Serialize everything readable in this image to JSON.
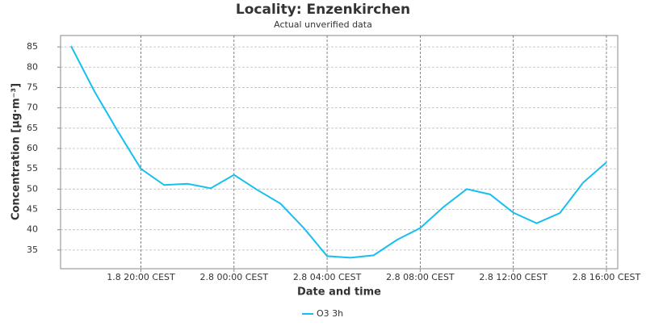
{
  "chart_data": {
    "type": "line",
    "title": "Locality: Enzenkirchen",
    "subtitle": "Actual unverified data",
    "x_label": "Date and time",
    "y_label": "Concentration [µg·m⁻³]",
    "categories": [
      null,
      null,
      null,
      "1.8 20:00 CEST",
      null,
      null,
      null,
      "2.8 00:00 CEST",
      null,
      null,
      null,
      "2.8 04:00 CEST",
      null,
      null,
      null,
      "2.8 08:00 CEST",
      null,
      null,
      null,
      "2.8 12:00 CEST",
      null,
      null,
      null,
      "2.8 16:00 CEST"
    ],
    "series": [
      {
        "name": "O3 3h",
        "color": "#17bff0",
        "values": [
          85.2,
          74.1,
          64.3,
          55.0,
          51.0,
          51.3,
          50.2,
          53.5,
          49.8,
          46.4,
          40.4,
          33.5,
          33.1,
          33.7,
          37.5,
          40.4,
          45.6,
          50.0,
          48.7,
          44.2,
          41.6,
          44.1,
          51.6,
          56.6
        ]
      }
    ],
    "ylim": [
      30.4,
      87.8
    ],
    "yticks": [
      35,
      40,
      45,
      50,
      55,
      60,
      65,
      70,
      75,
      80,
      85
    ],
    "grid": true,
    "legend": "bottom"
  }
}
